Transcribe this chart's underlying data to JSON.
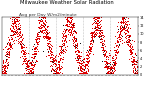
{
  "title": "Milwaukee Weather Solar Radiation",
  "subtitle": "Avg per Day W/m2/minute",
  "background_color": "#ffffff",
  "dot_color_main": "#dd0000",
  "dot_color_accent": "#111111",
  "ylim": [
    0,
    14
  ],
  "ytick_labels": [
    "14",
    "12",
    "10",
    "8",
    "6",
    "4",
    "2",
    "0"
  ],
  "yticks": [
    14,
    12,
    10,
    8,
    6,
    4,
    2,
    0
  ],
  "num_points": 365,
  "years": 5,
  "vline_color": "#bbbbbb",
  "title_fontsize": 3.8,
  "subtitle_fontsize": 3.2,
  "tick_fontsize": 2.5,
  "seed": 12
}
